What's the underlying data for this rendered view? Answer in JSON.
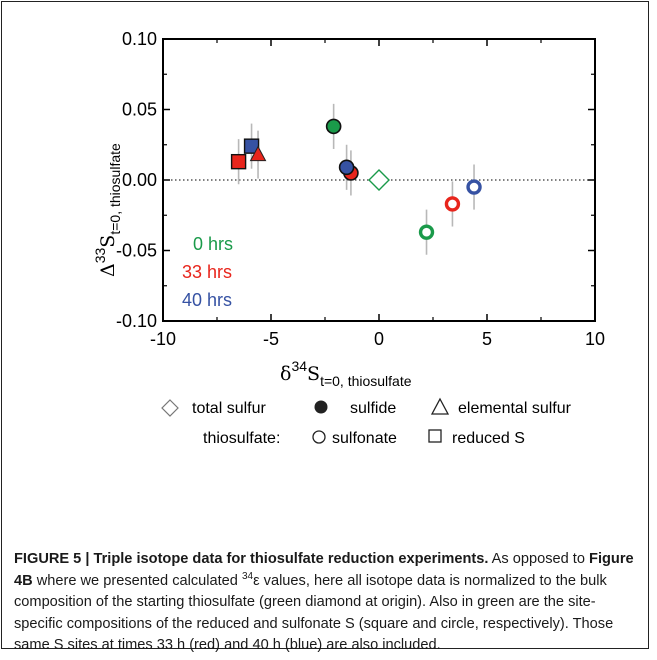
{
  "chart_data": {
    "type": "scatter",
    "xlabel": {
      "base": "δ",
      "sup": "34",
      "main": "S",
      "sub": "t=0, thiosulfate"
    },
    "ylabel": {
      "base": "Δ",
      "sup": "33",
      "main": "S",
      "sub": "t=0, thiosulfate"
    },
    "xlim": [
      -10,
      10
    ],
    "ylim": [
      -0.1,
      0.1
    ],
    "xticks": [
      "-10",
      "-5",
      "0",
      "5",
      "10"
    ],
    "yticks": [
      "-0.10",
      "-0.05",
      "0.00",
      "0.05",
      "0.10"
    ],
    "reference_line": {
      "y": 0.0,
      "style": "dotted"
    },
    "time_labels": [
      {
        "text": "0 hrs",
        "color": "#1a9a4a"
      },
      {
        "text": "33 hrs",
        "color": "#e8251c"
      },
      {
        "text": "40 hrs",
        "color": "#3652a3"
      }
    ],
    "points": [
      {
        "series": "total sulfur (0 hrs)",
        "marker": "diamond",
        "color": "#1a9a4a",
        "filled": false,
        "x": 0.0,
        "y": 0.0,
        "err": 0.0
      },
      {
        "series": "sulfide (0 hrs)",
        "marker": "circle-filled",
        "color": "#1a9a4a",
        "x": -2.1,
        "y": 0.038,
        "err": 0.016
      },
      {
        "series": "sulfide (33 hrs)",
        "marker": "circle-filled",
        "color": "#e8251c",
        "x": -1.3,
        "y": 0.005,
        "err": 0.016
      },
      {
        "series": "sulfide (40 hrs)",
        "marker": "circle-filled",
        "color": "#3652a3",
        "x": -1.5,
        "y": 0.009,
        "err": 0.016
      },
      {
        "series": "sulfonate (0 hrs)",
        "marker": "circle-open",
        "color": "#1a9a4a",
        "x": 2.2,
        "y": -0.037,
        "err": 0.016
      },
      {
        "series": "sulfonate (33 hrs)",
        "marker": "circle-open",
        "color": "#e8251c",
        "x": 3.4,
        "y": -0.017,
        "err": 0.016
      },
      {
        "series": "sulfonate (40 hrs)",
        "marker": "circle-open",
        "color": "#3652a3",
        "x": 4.4,
        "y": -0.005,
        "err": 0.016
      },
      {
        "series": "reduced S (33 hrs)",
        "marker": "square-filled",
        "color": "#e8251c",
        "x": -6.5,
        "y": 0.013,
        "err": 0.016
      },
      {
        "series": "reduced S (40 hrs)",
        "marker": "square-filled",
        "color": "#3652a3",
        "x": -5.9,
        "y": 0.024,
        "err": 0.016
      },
      {
        "series": "elemental sulfur (33 hrs)",
        "marker": "triangle-filled",
        "color": "#e8251c",
        "x": -5.6,
        "y": 0.018,
        "err": 0.017
      }
    ],
    "legend": {
      "row1": [
        "total sulfur",
        "sulfide",
        "elemental sulfur"
      ],
      "row2_prefix": "thiosulfate:",
      "row2": [
        "sulfonate",
        "reduced S"
      ]
    }
  },
  "caption": {
    "title": "FIGURE 5 | Triple isotope data for thiosulfate reduction experiments.",
    "body_a": " As opposed to ",
    "fig_ref": "Figure 4B",
    "body_b": " where we presented calculated ",
    "sup": "34",
    "body_c": "ε values, here all isotope data is normalized to the bulk composition of the starting thiosulfate (green diamond at origin). Also in green are the site-specific compositions of the reduced and sulfonate S (square and circle, respectively). Those same S sites at times 33 h (red) and 40 h (blue) are also included."
  }
}
